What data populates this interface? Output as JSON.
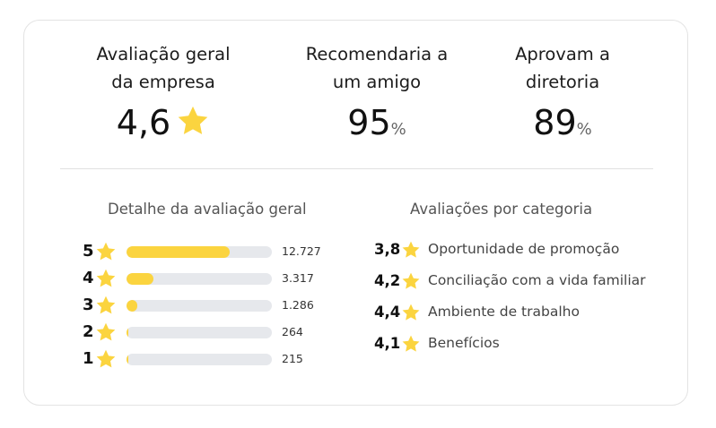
{
  "summary": {
    "overall": {
      "label_line1": "Avaliação geral",
      "label_line2": "da empresa",
      "value": "4,6"
    },
    "recommend": {
      "label_line1": "Recomendaria a",
      "label_line2": "um amigo",
      "value": "95",
      "unit": "%"
    },
    "approve": {
      "label_line1": "Aprovam a",
      "label_line2": "diretoria",
      "value": "89",
      "unit": "%"
    }
  },
  "detail": {
    "title": "Detalhe da avaliação geral",
    "rows": [
      {
        "stars": "5",
        "count": "12.727",
        "fill_fraction": 0.71
      },
      {
        "stars": "4",
        "count": "3.317",
        "fill_fraction": 0.185
      },
      {
        "stars": "3",
        "count": "1.286",
        "fill_fraction": 0.072
      },
      {
        "stars": "2",
        "count": "264",
        "fill_fraction": 0.015
      },
      {
        "stars": "1",
        "count": "215",
        "fill_fraction": 0.012
      }
    ]
  },
  "categories": {
    "title": "Avaliações por categoria",
    "items": [
      {
        "score": "3,8",
        "name": "Oportunidade de promoção"
      },
      {
        "score": "4,2",
        "name": "Conciliação com a vida familiar"
      },
      {
        "score": "4,4",
        "name": "Ambiente de trabalho"
      },
      {
        "score": "4,1",
        "name": "Benefícios"
      }
    ]
  },
  "colors": {
    "star": "#fbd43f",
    "bar_fill": "#fbd43f",
    "bar_track": "#e6e8ec"
  },
  "icons": {
    "star": "star-icon"
  }
}
